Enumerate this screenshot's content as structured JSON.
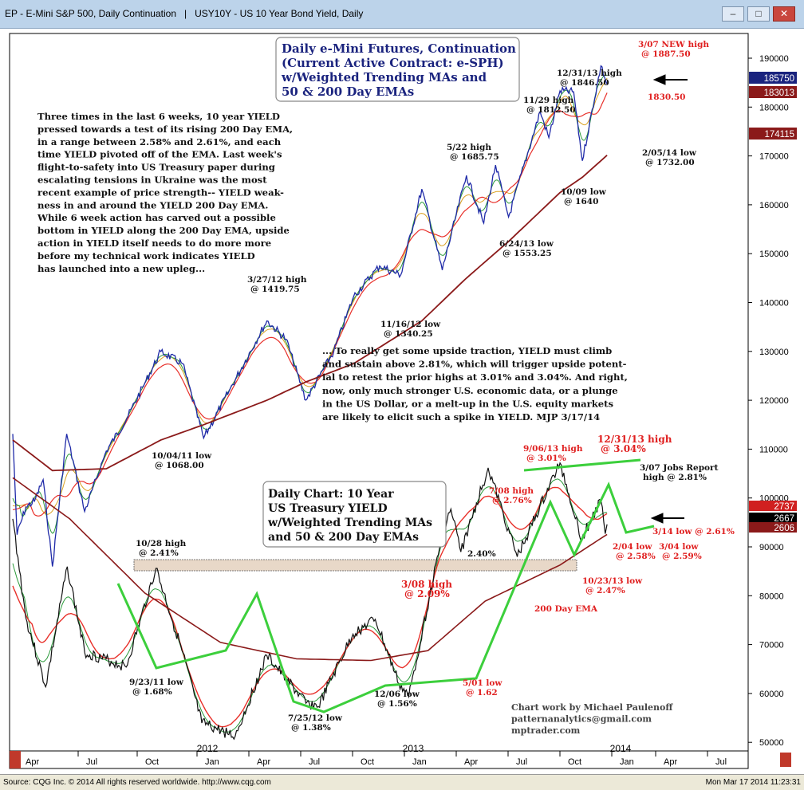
{
  "window": {
    "title": "EP - E-Mini S&P 500, Daily Continuation   |   USY10Y - US 10 Year Bond Yield, Daily",
    "min_icon": "minimize-icon",
    "max_icon": "maximize-icon",
    "close_icon": "close-icon"
  },
  "status": {
    "left": "Source: CQG Inc. © 2014 All rights reserved worldwide.  http://www.cqg.com",
    "right": "Mon Mar 17 2014 11:23:31"
  },
  "colors": {
    "price": "#1f2aa8",
    "ema200": "#8b1a1a",
    "ema50": "#e8302a",
    "wma_fast": "#2a9a3a",
    "wma_slow": "#d9a020",
    "trendline": "#3ccf3c",
    "label_red": "#e02020",
    "label_dark": "#111111"
  },
  "chart_data": [
    {
      "type": "line",
      "name": "e-Mini S&P 500 Daily Continuation",
      "axis": "right",
      "ylim": [
        45000,
        195000
      ],
      "yticks": [
        "190000",
        "180000",
        "170000",
        "160000",
        "150000",
        "140000",
        "130000",
        "120000",
        "110000",
        "100000",
        "90000",
        "80000",
        "70000",
        "60000",
        "50000"
      ],
      "last_values": [
        "185750",
        "183013",
        "174115"
      ],
      "series": [
        {
          "name": "price",
          "points": [
            [
              "2011-08-01",
              1285
            ],
            [
              "2011-08-08",
              1120
            ],
            [
              "2011-08-22",
              1165
            ],
            [
              "2011-09-05",
              1175
            ],
            [
              "2011-09-19",
              1210
            ],
            [
              "2011-10-04",
              1068
            ],
            [
              "2011-10-27",
              1285
            ],
            [
              "2011-11-25",
              1158
            ],
            [
              "2011-12-30",
              1257
            ],
            [
              "2012-02-01",
              1310
            ],
            [
              "2012-03-01",
              1368
            ],
            [
              "2012-03-27",
              1419.75
            ],
            [
              "2012-05-01",
              1400
            ],
            [
              "2012-06-04",
              1278
            ],
            [
              "2012-07-15",
              1355
            ],
            [
              "2012-09-14",
              1470
            ],
            [
              "2012-10-15",
              1440
            ],
            [
              "2012-11-16",
              1340.25
            ],
            [
              "2012-12-31",
              1420
            ],
            [
              "2013-02-01",
              1510
            ],
            [
              "2013-03-15",
              1560
            ],
            [
              "2013-04-18",
              1545
            ],
            [
              "2013-05-22",
              1685.75
            ],
            [
              "2013-06-24",
              1553.25
            ],
            [
              "2013-08-02",
              1708
            ],
            [
              "2013-08-30",
              1630
            ],
            [
              "2013-09-18",
              1725
            ],
            [
              "2013-10-09",
              1640
            ],
            [
              "2013-11-29",
              1812.5
            ],
            [
              "2013-12-13",
              1770
            ],
            [
              "2013-12-31",
              1846.5
            ],
            [
              "2014-01-22",
              1845
            ],
            [
              "2014-02-05",
              1732.0
            ],
            [
              "2014-03-07",
              1887.5
            ],
            [
              "2014-03-17",
              1857.5
            ]
          ]
        },
        {
          "name": "200 Day EMA",
          "points": [
            [
              "2011-08-01",
              1275
            ],
            [
              "2011-10-04",
              1225
            ],
            [
              "2011-12-30",
              1228
            ],
            [
              "2012-03-27",
              1275
            ],
            [
              "2012-06-04",
              1300
            ],
            [
              "2012-09-14",
              1340
            ],
            [
              "2012-11-16",
              1370
            ],
            [
              "2013-02-01",
              1400
            ],
            [
              "2013-05-22",
              1470
            ],
            [
              "2013-08-02",
              1540
            ],
            [
              "2013-10-09",
              1600
            ],
            [
              "2013-12-31",
              1680
            ],
            [
              "2014-02-05",
              1705
            ],
            [
              "2014-03-17",
              1741.15
            ]
          ]
        },
        {
          "name": "50 Day EMA",
          "value_last": 1830.13
        }
      ],
      "annotations": [
        {
          "text": "3/07 NEW high",
          "sub": "@ 1887.50",
          "color": "red"
        },
        {
          "text": "1830.50",
          "color": "red"
        },
        {
          "text": "12/31/13 high",
          "sub": "@ 1846.50"
        },
        {
          "text": "11/29 high",
          "sub": "@ 1812.50"
        },
        {
          "text": "2/05/14 low",
          "sub": "@ 1732.00"
        },
        {
          "text": "5/22 high",
          "sub": "@ 1685.75"
        },
        {
          "text": "10/09 low",
          "sub": "@ 1640"
        },
        {
          "text": "6/24/13 low",
          "sub": "@ 1553.25"
        },
        {
          "text": "3/27/12 high",
          "sub": "@ 1419.75"
        },
        {
          "text": "11/16/12 low",
          "sub": "@ 1340.25"
        },
        {
          "text": "10/04/11 low",
          "sub": "@ 1068.00"
        }
      ]
    },
    {
      "type": "line",
      "name": "US 10 Year Treasury Yield",
      "last_values": [
        "2737",
        "2667",
        "2606"
      ],
      "series": [
        {
          "name": "yield",
          "points": [
            [
              "2011-08-01",
              2.7
            ],
            [
              "2011-08-22",
              2.1
            ],
            [
              "2011-09-23",
              1.68
            ],
            [
              "2011-10-28",
              2.41
            ],
            [
              "2011-11-25",
              1.89
            ],
            [
              "2012-01-31",
              1.8
            ],
            [
              "2012-03-19",
              2.4
            ],
            [
              "2012-04-30",
              1.9
            ],
            [
              "2012-06-01",
              1.46
            ],
            [
              "2012-07-25",
              1.38
            ],
            [
              "2012-09-14",
              1.87
            ],
            [
              "2012-11-16",
              1.58
            ],
            [
              "2012-12-06",
              1.56
            ],
            [
              "2013-01-31",
              2.0
            ],
            [
              "2013-03-08",
              2.09
            ],
            [
              "2013-04-15",
              1.7
            ],
            [
              "2013-05-01",
              1.62
            ],
            [
              "2013-06-24",
              2.6
            ],
            [
              "2013-07-08",
              2.76
            ],
            [
              "2013-07-24",
              2.5
            ],
            [
              "2013-09-06",
              3.01
            ],
            [
              "2013-10-23",
              2.47
            ],
            [
              "2013-12-31",
              3.04
            ],
            [
              "2014-02-04",
              2.58
            ],
            [
              "2014-03-07",
              2.81
            ],
            [
              "2014-03-14",
              2.61
            ],
            [
              "2014-03-17",
              2.667
            ]
          ]
        },
        {
          "name": "200 Day EMA",
          "points": [
            [
              "2011-08-01",
              2.95
            ],
            [
              "2011-11-01",
              2.7
            ],
            [
              "2012-03-01",
              2.25
            ],
            [
              "2012-07-01",
              1.95
            ],
            [
              "2012-11-01",
              1.85
            ],
            [
              "2013-03-01",
              1.84
            ],
            [
              "2013-06-01",
              1.9
            ],
            [
              "2013-09-01",
              2.2
            ],
            [
              "2013-12-31",
              2.42
            ],
            [
              "2014-03-17",
              2.606
            ]
          ]
        },
        {
          "name": "50 Day EMA",
          "value_last": 2.737
        }
      ],
      "annotations": [
        {
          "text": "10/28 high",
          "sub": "@ 2.41%"
        },
        {
          "text": "9/23/11 low",
          "sub": "@ 1.68%"
        },
        {
          "text": "7/25/12 low",
          "sub": "@ 1.38%"
        },
        {
          "text": "12/06 low",
          "sub": "@ 1.56%"
        },
        {
          "text": "3/08 high",
          "sub": "@ 2.09%",
          "color": "red"
        },
        {
          "text": "5/01 low",
          "sub": "@ 1.62",
          "color": "red"
        },
        {
          "text": "7/08 high",
          "sub": "@ 2.76%",
          "color": "red"
        },
        {
          "text": "9/06/13 high",
          "sub": "@ 3.01%",
          "color": "red"
        },
        {
          "text": "12/31/13 high",
          "sub": "@ 3.04%",
          "color": "red"
        },
        {
          "text": "3/07 Jobs Report",
          "sub": "high @ 2.81%"
        },
        {
          "text": "3/14 low @ 2.61%",
          "color": "red"
        },
        {
          "text": "2/04 low",
          "sub": "@ 2.58%",
          "color": "red"
        },
        {
          "text": "3/04 low",
          "sub": "@ 2.59%",
          "color": "red"
        },
        {
          "text": "10/23/13 low",
          "sub": "@ 2.47%",
          "color": "red"
        },
        {
          "text": "200 Day EMA",
          "color": "red"
        },
        {
          "text": "2.40%"
        }
      ]
    }
  ],
  "xaxis": {
    "months": [
      "Apr",
      "Jul",
      "Oct",
      "Jan",
      "Apr",
      "Jul",
      "Oct",
      "Jan",
      "Apr",
      "Jul",
      "Oct",
      "Jan",
      "Apr",
      "Jul"
    ],
    "years": [
      "2012",
      "2013",
      "2014"
    ]
  },
  "boxes": {
    "es": [
      "Daily e-Mini Futures, Continuation",
      "(Current Active Contract:  e-SPH)",
      "w/Weighted Trending MAs and",
      "50 & 200 Day EMAs"
    ],
    "yield": [
      "Daily Chart: 10 Year",
      "US Treasury YIELD",
      "w/Weighted Trending MAs",
      "and 50 & 200 Day EMAs"
    ]
  },
  "commentary": {
    "left": [
      "Three times in the last 6 weeks, 10 year YIELD",
      "pressed towards a test of its rising 200 Day EMA,",
      "in a range between 2.58% and 2.61%, and each",
      "time YIELD pivoted off of the EMA. Last week's",
      "flight-to-safety into US Treasury paper during",
      "escalating tensions in Ukraine was the most",
      "recent example of price strength-- YIELD weak-",
      "ness in and around the YIELD 200 Day EMA.",
      "While 6 week action has carved out a possible",
      "bottom in YIELD along the 200 Day EMA, upside",
      "action in YIELD itself needs to do more more",
      "before my technical work indicates YIELD",
      "has launched into a new upleg..."
    ],
    "right": [
      "... To really get some upside traction, YIELD must climb",
      "and sustain above 2.81%, which will trigger upside potent-",
      "ial to retest the prior highs at 3.01% and 3.04%. And right,",
      "now, only much stronger U.S. economic data, or a plunge",
      "in the US Dollar, or a melt-up in the U.S. equity markets",
      "are likely to elicit such a spike in YIELD.  MJP 3/17/14"
    ]
  },
  "credits": [
    "Chart work by Michael Paulenoff",
    "patternanalytics@gmail.com",
    "mptrader.com"
  ]
}
